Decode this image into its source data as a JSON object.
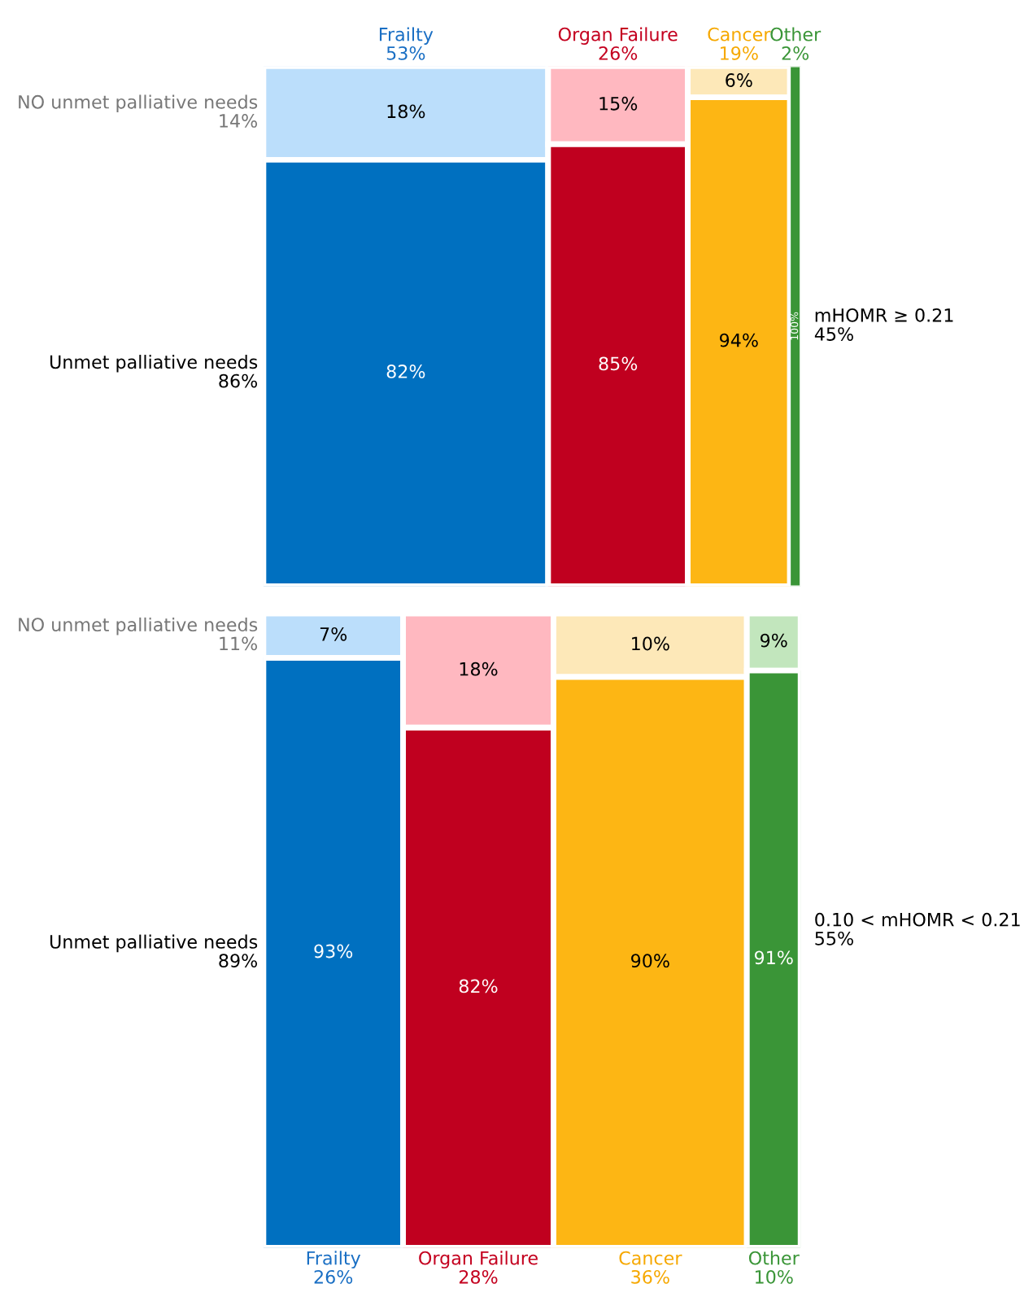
{
  "chart_data": [
    {
      "type": "other",
      "categories": [
        "Frailty",
        "Organ Failure",
        "Cancer",
        "Other"
      ],
      "values": [
        53,
        26,
        19,
        2
      ],
      "value_labels": [
        "53%",
        "26%",
        "19%",
        "2%"
      ],
      "colors": [
        "#1a6fc4",
        "#c4001f",
        "#f6a800",
        "#3a9537"
      ],
      "totals": [
        "14%",
        "86%"
      ],
      "annotations": [
        "mHOMR ≥ 0.21\n45%"
      ],
      "series": [
        {
          "name": "NO unmet palliative needs",
          "values": [
            18,
            15,
            6,
            null
          ],
          "value_labels": [
            "18%",
            "15%",
            "6%",
            null
          ],
          "colors": [
            "#bbdefb",
            "#ffb8c0",
            "#fde8b8",
            "#c2e6bd"
          ]
        },
        {
          "name": "Unmet palliative needs",
          "values": [
            82,
            85,
            94,
            100
          ],
          "value_labels": [
            "82%",
            "85%",
            "94%",
            "100%"
          ],
          "colors": [
            "#0070c0",
            "#c0001f",
            "#fdb614",
            "#3a9537"
          ]
        }
      ]
    },
    {
      "type": "other",
      "categories": [
        "Frailty",
        "Organ Failure",
        "Cancer",
        "Other"
      ],
      "values": [
        26,
        28,
        36,
        10
      ],
      "value_labels": [
        "26%",
        "28%",
        "36%",
        "10%"
      ],
      "colors": [
        "#1a6fc4",
        "#c4001f",
        "#f6a800",
        "#3a9537"
      ],
      "totals": [
        "11%",
        "89%"
      ],
      "annotations": [
        "0.10 < mHOMR < 0.21\n55%"
      ],
      "series": [
        {
          "name": "NO unmet palliative needs",
          "values": [
            7,
            18,
            10,
            9
          ],
          "value_labels": [
            "7%",
            "18%",
            "10%",
            "9%"
          ],
          "colors": [
            "#bbdefb",
            "#ffb8c0",
            "#fde8b8",
            "#c2e6bd"
          ]
        },
        {
          "name": "Unmet palliative needs",
          "values": [
            93,
            82,
            90,
            91
          ],
          "value_labels": [
            "93%",
            "82%",
            "90%",
            "91%"
          ],
          "colors": [
            "#0070c0",
            "#c0001f",
            "#fdb614",
            "#3a9537"
          ]
        }
      ]
    }
  ]
}
